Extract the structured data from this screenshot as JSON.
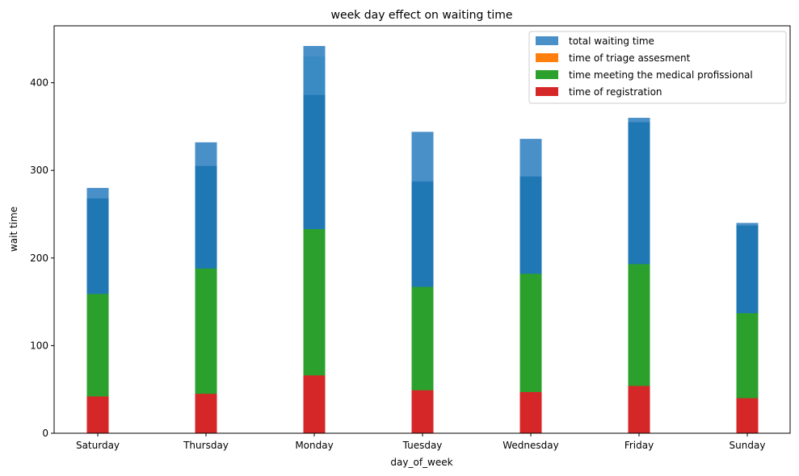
{
  "chart_data": {
    "type": "bar",
    "title": "week day effect on waiting time",
    "xlabel": "day_of_week",
    "ylabel": "wait time",
    "ylim": [
      0,
      465
    ],
    "yticks": [
      0,
      100,
      200,
      300,
      400
    ],
    "categories": [
      "Saturday",
      "Thursday",
      "Monday",
      "Tuesday",
      "Wednesday",
      "Friday",
      "Sunday"
    ],
    "legend_position": "upper right",
    "grid": false,
    "series": [
      {
        "name": "total waiting time",
        "color": "#4a90c8",
        "values": [
          280,
          332,
          442,
          344,
          336,
          360,
          240
        ]
      },
      {
        "name": "time of triage assesment",
        "color": "#ff7f0e",
        "values": [
          268,
          305,
          430,
          288,
          293,
          355,
          237
        ]
      },
      {
        "name": "time meeting the medical profissional",
        "color": "#2ca02c",
        "values": [
          159,
          188,
          233,
          167,
          182,
          193,
          137
        ]
      },
      {
        "name": "time of registration",
        "color": "#d62728",
        "values": [
          42,
          45,
          66,
          49,
          47,
          54,
          40
        ]
      }
    ],
    "overlay_color": "#1f77b4",
    "overlay_values": [
      268,
      305,
      386,
      287,
      293,
      355,
      237
    ],
    "overlay_top_values": [
      268,
      305,
      430,
      288,
      293,
      355,
      237
    ]
  }
}
